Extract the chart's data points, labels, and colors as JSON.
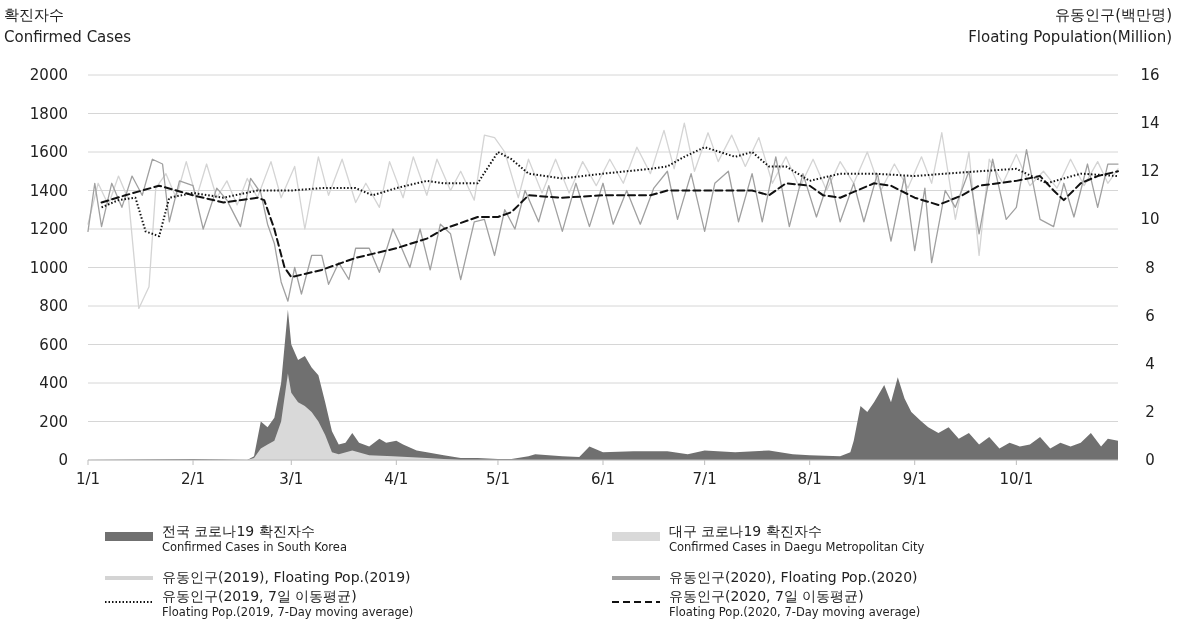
{
  "chart_data": {
    "type": "line",
    "ylabel": "확진자수\nConfirmed Cases",
    "y2label": "유동인구(백만명)\nFloating Population(Million)",
    "xlim": [
      "--01-01",
      "--10-31"
    ],
    "xticks": [
      {
        "value": "--01-01",
        "label": "1/1"
      },
      {
        "value": "--02-01",
        "label": "2/1"
      },
      {
        "value": "--03-01",
        "label": "3/1"
      },
      {
        "value": "--04-01",
        "label": "4/1"
      },
      {
        "value": "--05-01",
        "label": "5/1"
      },
      {
        "value": "--06-01",
        "label": "6/1"
      },
      {
        "value": "--07-01",
        "label": "7/1"
      },
      {
        "value": "--08-01",
        "label": "8/1"
      },
      {
        "value": "--09-01",
        "label": "9/1"
      },
      {
        "value": "--10-01",
        "label": "10/1"
      }
    ],
    "ylim": [
      0,
      2000
    ],
    "yticks": [
      0,
      200,
      400,
      600,
      800,
      1000,
      1200,
      1400,
      1600,
      1800,
      2000
    ],
    "y2lim": [
      0,
      16
    ],
    "y2ticks": [
      0,
      2,
      4,
      6,
      8,
      10,
      12,
      14,
      16
    ],
    "grid": "y",
    "legend": "bottom",
    "series": [
      {
        "name": "전국 코로나19 확진자수\nConfirmed Cases in South Korea",
        "type": "area",
        "color": "#707070",
        "x": [
          "--01-01",
          "--02-01",
          "--02-10",
          "--02-17",
          "--02-19",
          "--02-21",
          "--02-23",
          "--02-25",
          "--02-27",
          "--02-29",
          "--03-01",
          "--03-03",
          "--03-05",
          "--03-07",
          "--03-09",
          "--03-11",
          "--03-13",
          "--03-15",
          "--03-17",
          "--03-19",
          "--03-21",
          "--03-24",
          "--03-27",
          "--03-29",
          "--04-01",
          "--04-03",
          "--04-07",
          "--04-10",
          "--04-15",
          "--04-20",
          "--04-25",
          "--05-01",
          "--05-05",
          "--05-10",
          "--05-12",
          "--05-20",
          "--05-25",
          "--05-28",
          "--06-01",
          "--06-10",
          "--06-20",
          "--06-26",
          "--07-01",
          "--07-10",
          "--07-20",
          "--07-27",
          "--08-01",
          "--08-10",
          "--08-13",
          "--08-14",
          "--08-16",
          "--08-18",
          "--08-20",
          "--08-23",
          "--08-25",
          "--08-27",
          "--08-29",
          "--08-31",
          "--09-03",
          "--09-05",
          "--09-08",
          "--09-11",
          "--09-14",
          "--09-17",
          "--09-20",
          "--09-23",
          "--09-26",
          "--09-29",
          "--10-02",
          "--10-05",
          "--10-08",
          "--10-11",
          "--10-14",
          "--10-17",
          "--10-20",
          "--10-23",
          "--10-26",
          "--10-28",
          "--10-31"
        ],
        "values": [
          0,
          5,
          3,
          0,
          20,
          200,
          170,
          220,
          400,
          780,
          600,
          520,
          540,
          480,
          440,
          300,
          150,
          80,
          90,
          140,
          90,
          70,
          110,
          90,
          100,
          80,
          50,
          40,
          25,
          10,
          10,
          5,
          5,
          20,
          30,
          20,
          15,
          70,
          40,
          45,
          45,
          30,
          50,
          40,
          50,
          30,
          25,
          20,
          40,
          100,
          280,
          250,
          300,
          390,
          300,
          430,
          320,
          250,
          200,
          170,
          140,
          170,
          110,
          140,
          80,
          120,
          60,
          90,
          70,
          80,
          120,
          60,
          90,
          70,
          90,
          140,
          70,
          110,
          100
        ]
      },
      {
        "name": "대구 코로나19 확진자수\nConfirmed Cases in Daegu Metropolitan City",
        "type": "area",
        "color": "#d9d9d9",
        "x": [
          "--02-17",
          "--02-19",
          "--02-21",
          "--02-23",
          "--02-25",
          "--02-27",
          "--02-29",
          "--03-01",
          "--03-03",
          "--03-05",
          "--03-07",
          "--03-09",
          "--03-11",
          "--03-13",
          "--03-15",
          "--03-19",
          "--03-24",
          "--03-31",
          "--04-10",
          "--04-20"
        ],
        "values": [
          0,
          10,
          60,
          80,
          100,
          200,
          450,
          350,
          300,
          280,
          250,
          200,
          130,
          40,
          30,
          50,
          25,
          20,
          10,
          0
        ]
      },
      {
        "name": "유동인구(2019), Floating Pop.(2019)",
        "axis": "y2",
        "color": "#d4d4d4",
        "line_style": "solid",
        "x": [
          "--01-01",
          "--01-04",
          "--01-07",
          "--01-10",
          "--01-13",
          "--01-16",
          "--01-19",
          "--01-21",
          "--01-24",
          "--01-27",
          "--01-30",
          "--02-02",
          "--02-05",
          "--02-08",
          "--02-11",
          "--02-14",
          "--02-17",
          "--02-20",
          "--02-24",
          "--02-27",
          "--03-02",
          "--03-05",
          "--03-09",
          "--03-12",
          "--03-16",
          "--03-20",
          "--03-23",
          "--03-27",
          "--03-30",
          "--04-03",
          "--04-06",
          "--04-10",
          "--04-13",
          "--04-17",
          "--04-20",
          "--04-24",
          "--04-27",
          "--04-30",
          "--05-03",
          "--05-07",
          "--05-10",
          "--05-14",
          "--05-18",
          "--05-22",
          "--05-26",
          "--05-30",
          "--06-03",
          "--06-07",
          "--06-11",
          "--06-15",
          "--06-19",
          "--06-22",
          "--06-25",
          "--06-28",
          "--07-02",
          "--07-05",
          "--07-09",
          "--07-13",
          "--07-17",
          "--07-21",
          "--07-25",
          "--07-29",
          "--08-02",
          "--08-06",
          "--08-10",
          "--08-14",
          "--08-18",
          "--08-22",
          "--08-26",
          "--08-30",
          "--09-03",
          "--09-06",
          "--09-09",
          "--09-13",
          "--09-17",
          "--09-20",
          "--09-23",
          "--09-27",
          "--10-01",
          "--10-05",
          "--10-09",
          "--10-13",
          "--10-17",
          "--10-21",
          "--10-25",
          "--10-28",
          "--10-31"
        ],
        "values": [
          9.8,
          11.5,
          10.6,
          11.8,
          10.8,
          6.3,
          7.2,
          11.3,
          11.9,
          10.9,
          12.4,
          10.9,
          12.3,
          10.9,
          11.6,
          10.6,
          11.7,
          10.9,
          12.4,
          10.9,
          12.2,
          9.6,
          12.6,
          11,
          12.5,
          10.7,
          11.5,
          10.5,
          12.4,
          10.9,
          12.6,
          11,
          12.5,
          11.2,
          12,
          10.8,
          13.5,
          13.4,
          12.8,
          10.9,
          12.5,
          11.1,
          12.5,
          11.1,
          12.4,
          11.4,
          12.5,
          11.5,
          13,
          11.9,
          13.7,
          12.1,
          14,
          12,
          13.6,
          12.4,
          13.5,
          12.2,
          13.4,
          11.5,
          12.6,
          11.3,
          12.5,
          11.2,
          12.4,
          11.5,
          12.8,
          11.2,
          12.3,
          11.3,
          12.6,
          11.5,
          13.6,
          10,
          12.8,
          8.5,
          12.5,
          11.5,
          12.7,
          11.4,
          12,
          11.3,
          12.5,
          11.4,
          12.4,
          11.5,
          12.1
        ]
      },
      {
        "name": "유동인구(2020), Floating Pop.(2020)",
        "axis": "y2",
        "color": "#a0a0a0",
        "line_style": "solid",
        "x": [
          "--01-01",
          "--01-03",
          "--01-05",
          "--01-08",
          "--01-11",
          "--01-14",
          "--01-17",
          "--01-20",
          "--01-23",
          "--01-25",
          "--01-28",
          "--02-01",
          "--02-04",
          "--02-08",
          "--02-11",
          "--02-15",
          "--02-18",
          "--02-21",
          "--02-23",
          "--02-25",
          "--02-27",
          "--02-29",
          "--03-02",
          "--03-04",
          "--03-07",
          "--03-10",
          "--03-12",
          "--03-15",
          "--03-18",
          "--03-20",
          "--03-24",
          "--03-27",
          "--03-31",
          "--04-02",
          "--04-05",
          "--04-08",
          "--04-11",
          "--04-14",
          "--04-17",
          "--04-20",
          "--04-24",
          "--04-27",
          "--04-30",
          "--05-03",
          "--05-06",
          "--05-09",
          "--05-13",
          "--05-16",
          "--05-20",
          "--05-24",
          "--05-28",
          "--06-01",
          "--06-04",
          "--06-08",
          "--06-12",
          "--06-16",
          "--06-20",
          "--06-23",
          "--06-27",
          "--07-01",
          "--07-04",
          "--07-08",
          "--07-11",
          "--07-15",
          "--07-18",
          "--07-22",
          "--07-26",
          "--07-30",
          "--08-03",
          "--08-07",
          "--08-10",
          "--08-14",
          "--08-17",
          "--08-21",
          "--08-25",
          "--08-29",
          "--09-01",
          "--09-04",
          "--09-06",
          "--09-10",
          "--09-13",
          "--09-17",
          "--09-20",
          "--09-24",
          "--09-28",
          "--10-01",
          "--10-04",
          "--10-08",
          "--10-12",
          "--10-15",
          "--10-18",
          "--10-22",
          "--10-25",
          "--10-28",
          "--10-31"
        ],
        "values": [
          9.5,
          11.5,
          9.7,
          11.5,
          10.5,
          11.8,
          11,
          12.5,
          12.3,
          9.9,
          11.6,
          11.4,
          9.6,
          11.3,
          10.8,
          9.7,
          11.7,
          11.1,
          9.8,
          9,
          7.4,
          6.6,
          8,
          6.9,
          8.5,
          8.5,
          7.3,
          8.2,
          7.5,
          8.8,
          8.8,
          7.8,
          9.6,
          9,
          8,
          9.6,
          7.9,
          9.8,
          9.4,
          7.5,
          9.9,
          10,
          8.5,
          10.4,
          9.6,
          11.2,
          9.9,
          11.4,
          9.5,
          11.5,
          9.7,
          11.5,
          9.8,
          11.2,
          9.8,
          11.3,
          12,
          10,
          11.9,
          9.5,
          11.5,
          12,
          9.9,
          11.9,
          9.9,
          12.6,
          9.7,
          11.9,
          10.1,
          11.8,
          9.9,
          11.5,
          9.9,
          11.9,
          9.1,
          11.8,
          8.7,
          11.3,
          8.2,
          11.2,
          10.5,
          12,
          9.4,
          12.5,
          10,
          10.5,
          12.9,
          10,
          9.7,
          11.5,
          10.1,
          12.3,
          10.5,
          12.3,
          12.3
        ]
      },
      {
        "name": "유동인구(2019, 7일 이동평균)\nFloating Pop.(2019, 7-Day moving average)",
        "axis": "y2",
        "color": "#111111",
        "line_style": "dotted",
        "x": [
          "--01-05",
          "--01-10",
          "--01-15",
          "--01-18",
          "--01-22",
          "--01-25",
          "--02-01",
          "--02-10",
          "--02-20",
          "--03-01",
          "--03-10",
          "--03-20",
          "--03-25",
          "--04-01",
          "--04-10",
          "--04-15",
          "--04-25",
          "--05-01",
          "--05-05",
          "--05-10",
          "--05-20",
          "--06-01",
          "--06-15",
          "--06-20",
          "--06-25",
          "--07-01",
          "--07-10",
          "--07-15",
          "--07-20",
          "--07-25",
          "--08-01",
          "--08-10",
          "--08-20",
          "--09-01",
          "--09-10",
          "--09-20",
          "--10-01",
          "--10-10",
          "--10-20",
          "--10-31"
        ],
        "values": [
          10.5,
          10.8,
          10.9,
          9.5,
          9.3,
          10.9,
          11.1,
          10.9,
          11.2,
          11.2,
          11.3,
          11.3,
          11,
          11.3,
          11.6,
          11.5,
          11.5,
          12.8,
          12.5,
          11.9,
          11.7,
          11.9,
          12.1,
          12.2,
          12.6,
          13,
          12.6,
          12.8,
          12.2,
          12.2,
          11.6,
          11.9,
          11.9,
          11.8,
          11.9,
          12,
          12.1,
          11.5,
          11.9,
          11.8
        ]
      },
      {
        "name": "유동인구(2020, 7일 이동평균)\nFloating Pop.(2020, 7-Day moving average)",
        "axis": "y2",
        "color": "#111111",
        "line_style": "dashed",
        "x": [
          "--01-05",
          "--01-12",
          "--01-22",
          "--02-01",
          "--02-10",
          "--02-20",
          "--02-22",
          "--02-25",
          "--02-28",
          "--03-01",
          "--03-10",
          "--03-20",
          "--04-01",
          "--04-10",
          "--04-15",
          "--04-25",
          "--05-01",
          "--05-05",
          "--05-10",
          "--05-20",
          "--06-01",
          "--06-15",
          "--06-20",
          "--07-01",
          "--07-15",
          "--07-20",
          "--07-25",
          "--08-01",
          "--08-05",
          "--08-10",
          "--08-15",
          "--08-20",
          "--08-25",
          "--09-01",
          "--09-08",
          "--09-15",
          "--09-20",
          "--10-01",
          "--10-08",
          "--10-12",
          "--10-15",
          "--10-20",
          "--10-25",
          "--10-31"
        ],
        "values": [
          10.7,
          11,
          11.4,
          11,
          10.7,
          10.9,
          10.8,
          9.6,
          8,
          7.6,
          7.9,
          8.4,
          8.8,
          9.2,
          9.6,
          10.1,
          10.1,
          10.3,
          11,
          10.9,
          11,
          11,
          11.2,
          11.2,
          11.2,
          11,
          11.5,
          11.4,
          11,
          10.9,
          11.2,
          11.5,
          11.4,
          10.9,
          10.6,
          11,
          11.4,
          11.6,
          11.8,
          11.2,
          10.8,
          11.5,
          11.8,
          12
        ]
      }
    ]
  }
}
